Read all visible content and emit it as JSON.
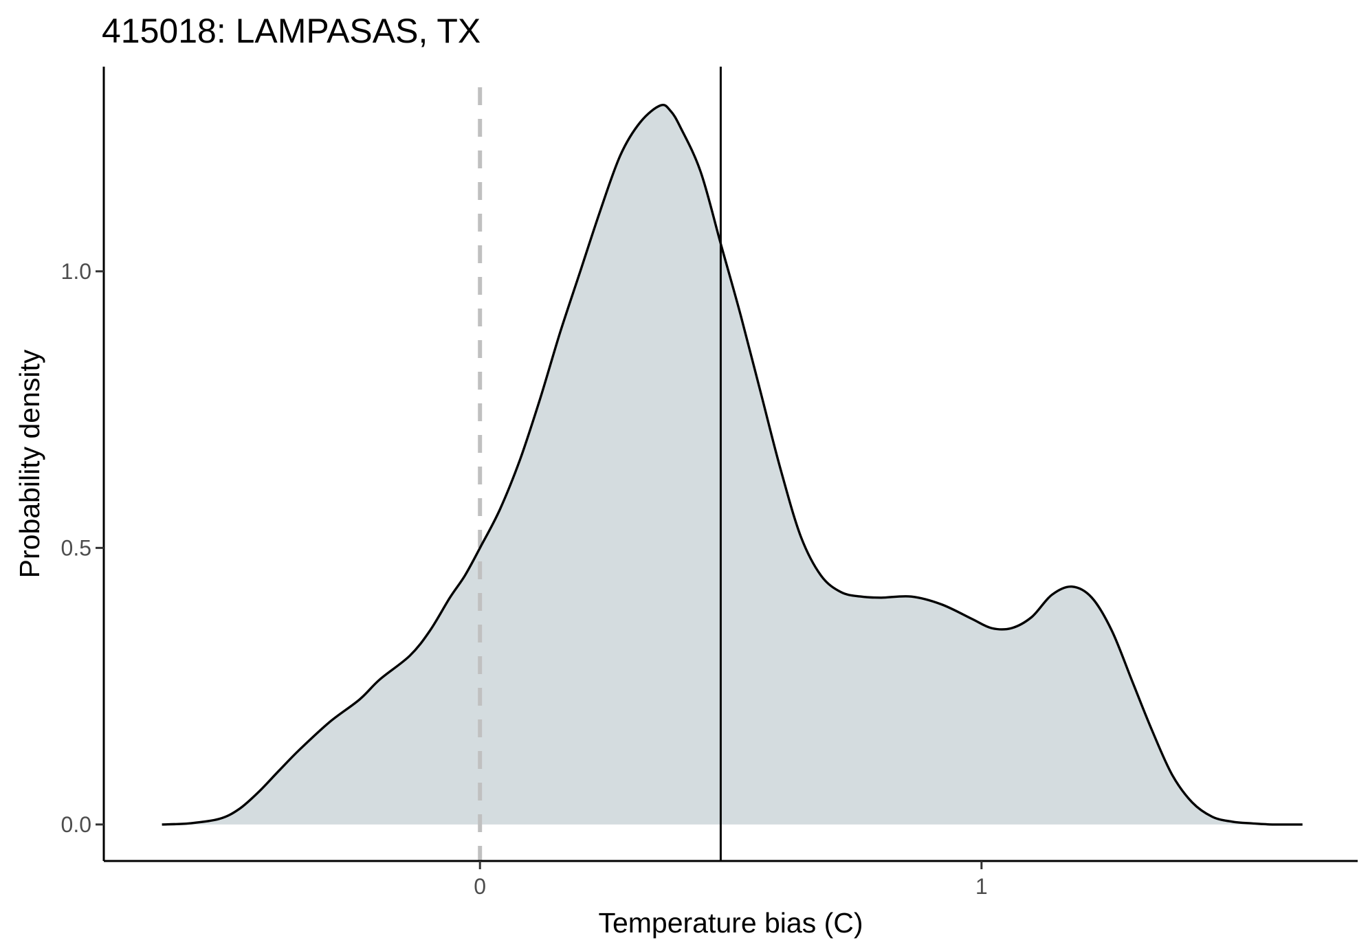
{
  "chart_data": {
    "type": "area",
    "title": "415018: LAMPASAS, TX",
    "xlabel": "Temperature bias (C)",
    "ylabel": "Probability density",
    "x_ticks": [
      0,
      1
    ],
    "x_tick_labels": [
      "0",
      "1"
    ],
    "y_ticks": [
      0.0,
      0.5,
      1.0
    ],
    "y_tick_labels": [
      "0.0",
      "0.5",
      "1.0"
    ],
    "xlim": [
      -0.75,
      1.75
    ],
    "ylim": [
      -0.066,
      1.37
    ],
    "grid": false,
    "fill_color": "#d4dcdf",
    "line_color": "#000000",
    "reference_lines": [
      {
        "x": 0,
        "style": "dashed",
        "color": "#c0c0c0"
      },
      {
        "x": 0.48,
        "style": "solid",
        "color": "#000000"
      }
    ],
    "density": {
      "x": [
        -0.634,
        -0.58,
        -0.52,
        -0.48,
        -0.44,
        -0.4,
        -0.36,
        -0.3,
        -0.24,
        -0.2,
        -0.14,
        -0.1,
        -0.06,
        -0.03,
        0.0,
        0.04,
        0.08,
        0.12,
        0.16,
        0.2,
        0.24,
        0.28,
        0.32,
        0.36,
        0.38,
        0.4,
        0.44,
        0.48,
        0.52,
        0.56,
        0.6,
        0.64,
        0.68,
        0.72,
        0.76,
        0.8,
        0.86,
        0.92,
        0.98,
        1.02,
        1.06,
        1.1,
        1.14,
        1.18,
        1.22,
        1.26,
        1.3,
        1.34,
        1.38,
        1.42,
        1.46,
        1.5,
        1.54,
        1.58,
        1.62,
        1.64
      ],
      "y": [
        0.0,
        0.002,
        0.01,
        0.028,
        0.06,
        0.098,
        0.135,
        0.185,
        0.226,
        0.262,
        0.305,
        0.35,
        0.41,
        0.45,
        0.5,
        0.57,
        0.66,
        0.77,
        0.89,
        1.0,
        1.11,
        1.21,
        1.27,
        1.3,
        1.29,
        1.26,
        1.18,
        1.05,
        0.92,
        0.78,
        0.64,
        0.52,
        0.45,
        0.42,
        0.412,
        0.41,
        0.412,
        0.398,
        0.372,
        0.355,
        0.355,
        0.375,
        0.415,
        0.43,
        0.41,
        0.35,
        0.26,
        0.17,
        0.09,
        0.04,
        0.014,
        0.005,
        0.002,
        0.0,
        0.0,
        0.0
      ]
    }
  }
}
